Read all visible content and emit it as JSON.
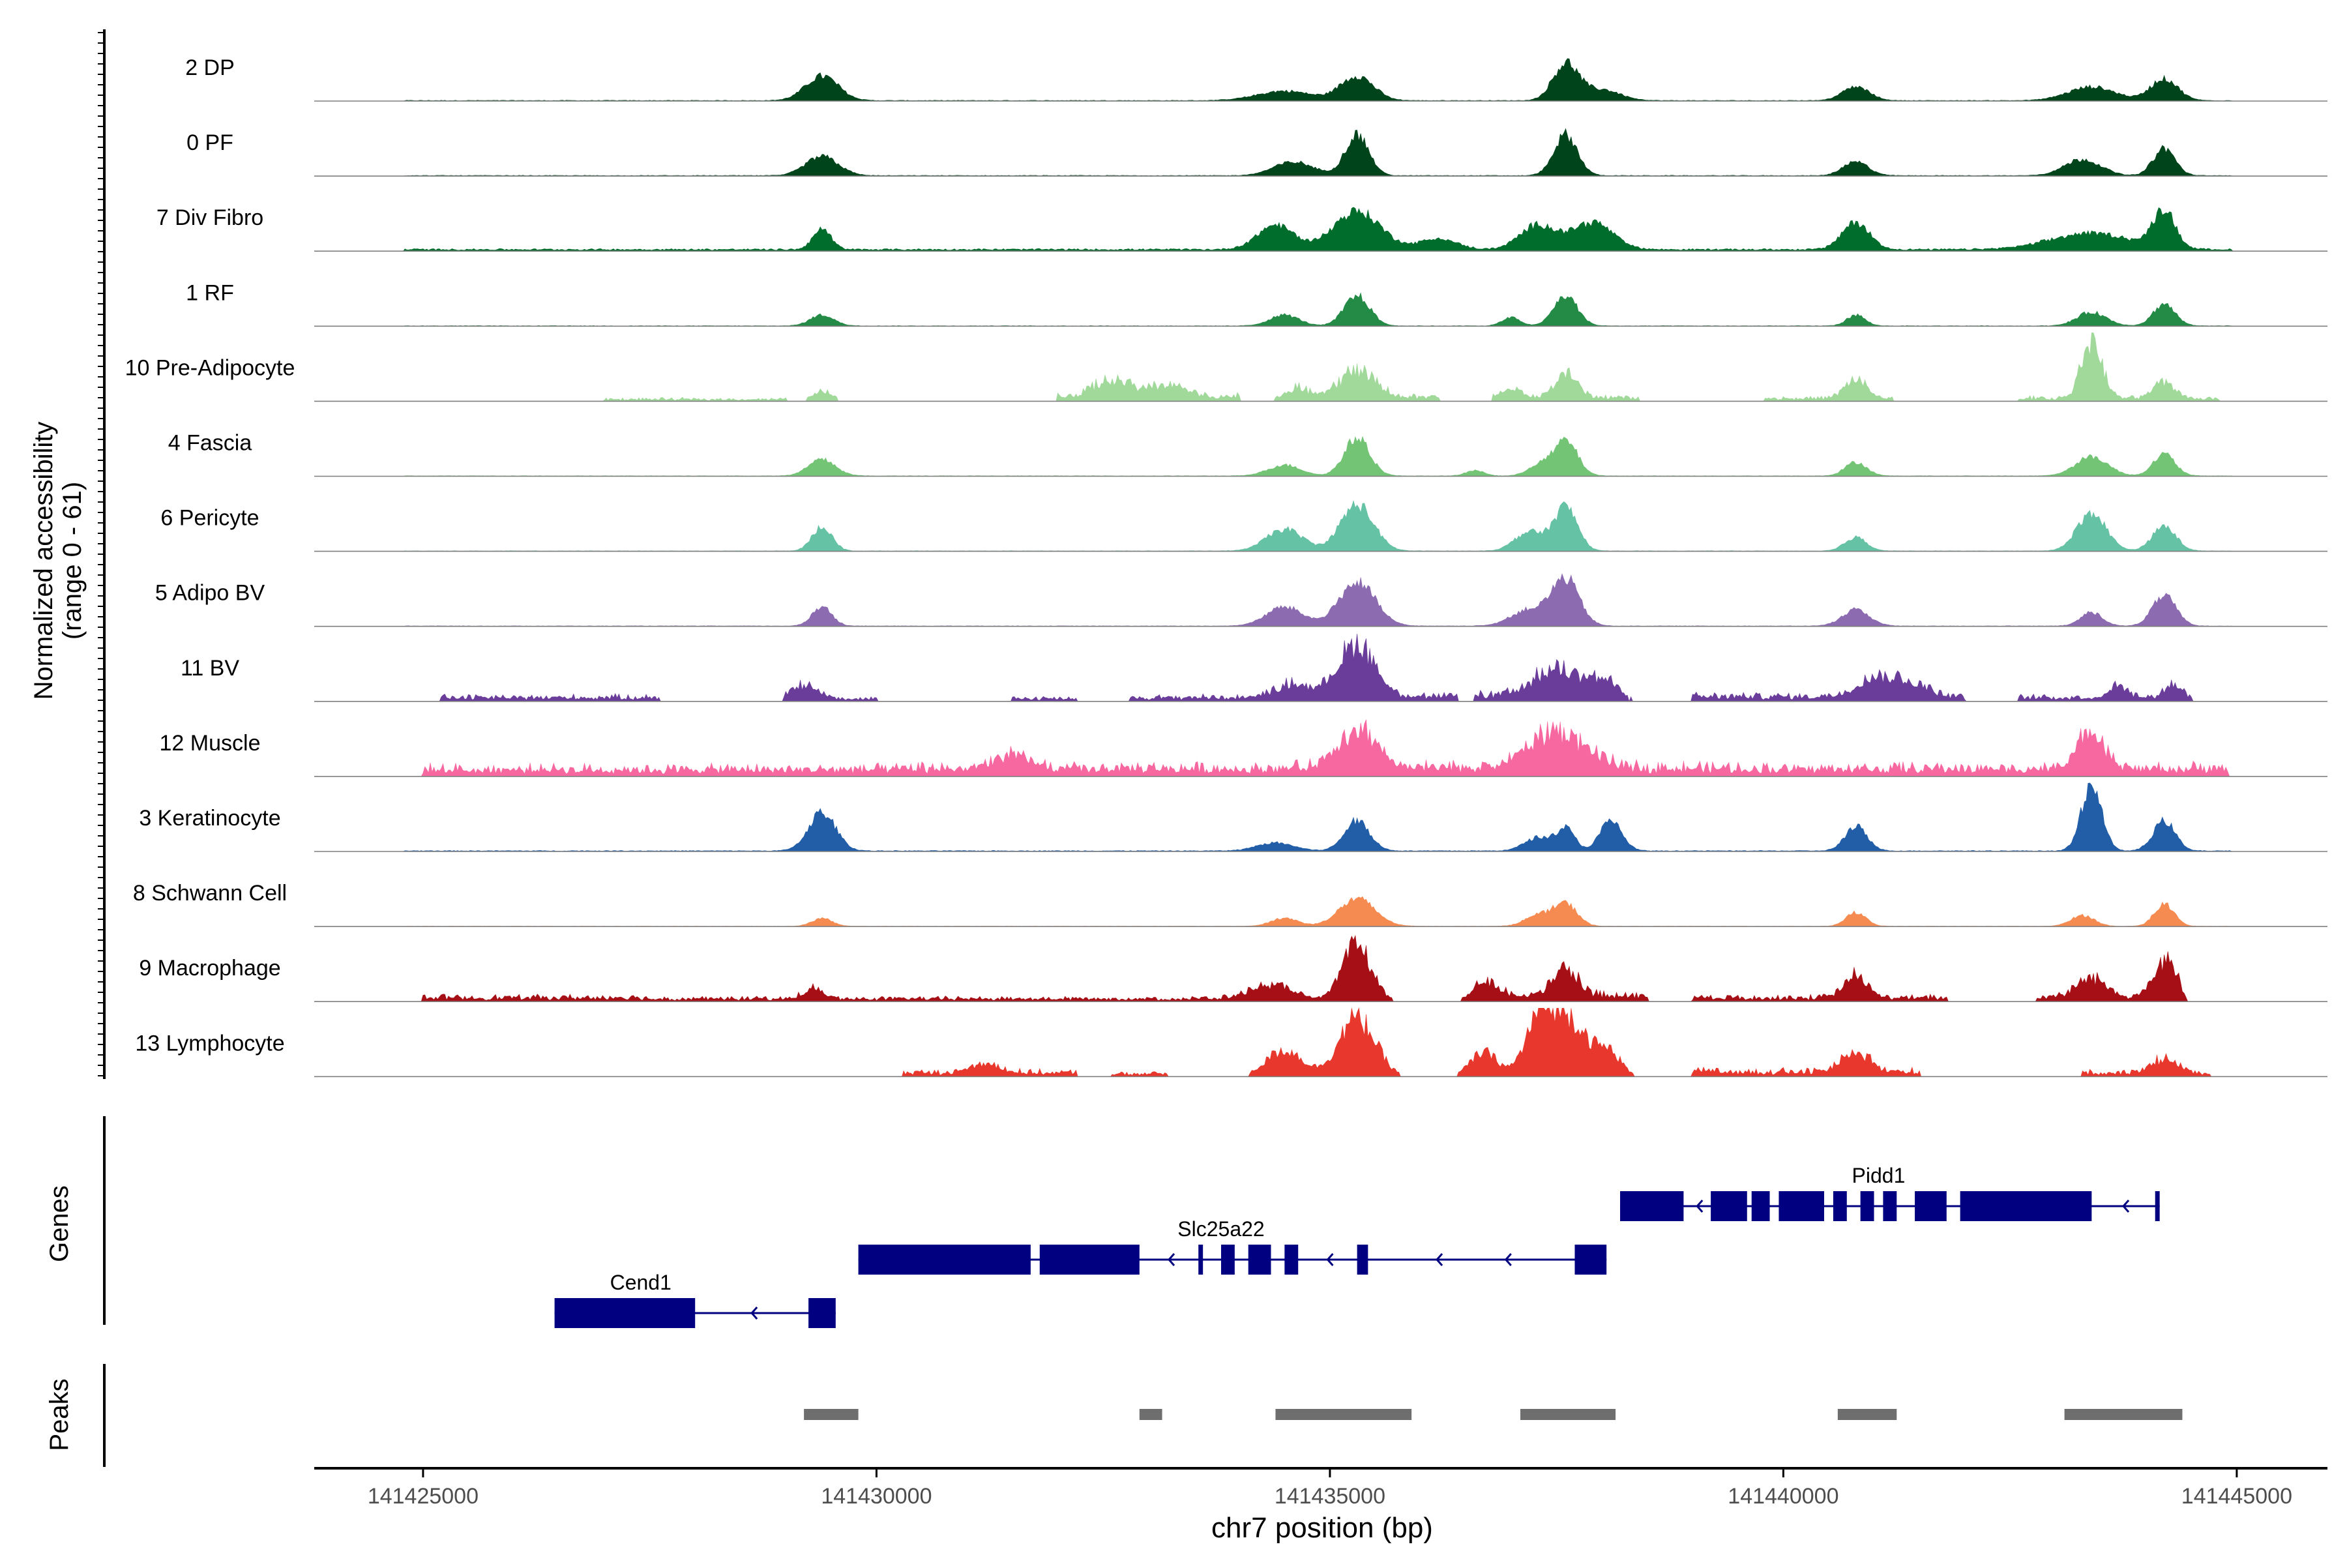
{
  "chart_data": {
    "type": "area",
    "title": "",
    "ylabel_line1": "Normalized accessibility",
    "ylabel_line2": "(range 0 - 61)",
    "xlabel": "chr7 position (bp)",
    "chromosome": "chr7",
    "y_range": [
      0,
      61
    ],
    "x_range": [
      141423800,
      141446000
    ],
    "x_ticks": [
      141425000,
      141430000,
      141435000,
      141440000,
      141445000
    ],
    "x_tick_labels": [
      "141425000",
      "141430000",
      "141435000",
      "141440000",
      "141445000"
    ],
    "peak_centers": [
      141429400,
      141435300,
      141437600,
      141440800,
      141443400,
      141444200
    ],
    "series": [
      {
        "name": "2 DP",
        "color": "#00441b",
        "style": "smooth",
        "baseline": 0.4,
        "peaks": [
          [
            141429400,
            18,
            180
          ],
          [
            141434500,
            7,
            300
          ],
          [
            141435300,
            18,
            180
          ],
          [
            141437600,
            27,
            140
          ],
          [
            141438000,
            8,
            200
          ],
          [
            141440800,
            10,
            150
          ],
          [
            141443400,
            10,
            260
          ],
          [
            141444200,
            16,
            150
          ]
        ]
      },
      {
        "name": "0 PF",
        "color": "#00441b",
        "style": "smooth",
        "baseline": 0.4,
        "peaks": [
          [
            141429400,
            14,
            180
          ],
          [
            141434600,
            10,
            220
          ],
          [
            141435300,
            30,
            130
          ],
          [
            141437600,
            30,
            130
          ],
          [
            141440800,
            10,
            140
          ],
          [
            141443300,
            12,
            200
          ],
          [
            141444200,
            20,
            120
          ]
        ]
      },
      {
        "name": "7 Div Fibro",
        "color": "#006d2c",
        "style": "smooth",
        "baseline": 1.2,
        "peaks": [
          [
            141429400,
            15,
            100
          ],
          [
            141434400,
            18,
            200
          ],
          [
            141435300,
            28,
            260
          ],
          [
            141436200,
            8,
            200
          ],
          [
            141437300,
            18,
            200
          ],
          [
            141437900,
            20,
            220
          ],
          [
            141440800,
            20,
            150
          ],
          [
            141443400,
            12,
            450
          ],
          [
            141444200,
            28,
            120
          ]
        ]
      },
      {
        "name": "1 RF",
        "color": "#238b45",
        "style": "smooth",
        "baseline": 0.3,
        "peaks": [
          [
            141429400,
            8,
            130
          ],
          [
            141434500,
            8,
            160
          ],
          [
            141435300,
            22,
            140
          ],
          [
            141437000,
            6,
            100
          ],
          [
            141437600,
            22,
            130
          ],
          [
            141440800,
            8,
            100
          ],
          [
            141443400,
            10,
            160
          ],
          [
            141444200,
            16,
            120
          ]
        ]
      },
      {
        "name": "10 Pre-Adipocyte",
        "color": "#a1d99b",
        "style": "block",
        "baseline": 0.2,
        "ranges": [
          [
            141427000,
            141429000,
            2
          ],
          [
            141432000,
            141434000,
            5
          ],
          [
            141434600,
            141436200,
            4
          ],
          [
            141436800,
            141438400,
            4
          ],
          [
            141439800,
            141441200,
            3
          ],
          [
            141442600,
            141444800,
            3
          ]
        ],
        "peaks": [
          [
            141429400,
            8,
            110
          ],
          [
            141432600,
            12,
            200
          ],
          [
            141433200,
            9,
            200
          ],
          [
            141434600,
            7,
            150
          ],
          [
            141435300,
            20,
            200
          ],
          [
            141437000,
            7,
            100
          ],
          [
            141437600,
            18,
            120
          ],
          [
            141440800,
            14,
            120
          ],
          [
            141443400,
            45,
            110
          ],
          [
            141444200,
            12,
            120
          ]
        ]
      },
      {
        "name": "4 Fascia",
        "color": "#74c476",
        "style": "smooth",
        "baseline": 0.3,
        "peaks": [
          [
            141429400,
            12,
            150
          ],
          [
            141434500,
            8,
            180
          ],
          [
            141435300,
            28,
            140
          ],
          [
            141436600,
            4,
            100
          ],
          [
            141437300,
            8,
            120
          ],
          [
            141437600,
            26,
            130
          ],
          [
            141440800,
            10,
            120
          ],
          [
            141443400,
            14,
            180
          ],
          [
            141444200,
            16,
            120
          ]
        ]
      },
      {
        "name": "6 Pericyte",
        "color": "#66c2a4",
        "style": "smooth",
        "baseline": 0.3,
        "peaks": [
          [
            141429400,
            18,
            110
          ],
          [
            141434500,
            16,
            200
          ],
          [
            141435300,
            34,
            180
          ],
          [
            141437200,
            14,
            160
          ],
          [
            141437600,
            32,
            130
          ],
          [
            141440800,
            10,
            120
          ],
          [
            141443400,
            28,
            160
          ],
          [
            141444200,
            18,
            130
          ]
        ]
      },
      {
        "name": "5 Adipo BV",
        "color": "#8c6bb1",
        "style": "smooth",
        "baseline": 0.3,
        "peaks": [
          [
            141429400,
            14,
            110
          ],
          [
            141434500,
            14,
            200
          ],
          [
            141435300,
            32,
            200
          ],
          [
            141437200,
            12,
            200
          ],
          [
            141437600,
            34,
            150
          ],
          [
            141440800,
            12,
            150
          ],
          [
            141443400,
            10,
            120
          ],
          [
            141444200,
            22,
            130
          ]
        ]
      },
      {
        "name": "11 BV",
        "color": "#6a3d9a",
        "style": "block",
        "baseline": 0.0,
        "ranges": [
          [
            141425200,
            141427600,
            4
          ],
          [
            141429000,
            141430000,
            3
          ],
          [
            141431500,
            141432200,
            3
          ],
          [
            141432800,
            141434400,
            4
          ],
          [
            141434400,
            141436400,
            5
          ],
          [
            141436600,
            141438200,
            6
          ],
          [
            141439000,
            141442000,
            5
          ],
          [
            141442600,
            141444500,
            4
          ]
        ],
        "peaks": [
          [
            141429200,
            10,
            150
          ],
          [
            141434600,
            10,
            200
          ],
          [
            141435300,
            40,
            200
          ],
          [
            141437500,
            20,
            250
          ],
          [
            141438000,
            10,
            200
          ],
          [
            141441000,
            14,
            200
          ],
          [
            141441400,
            10,
            200
          ],
          [
            141443700,
            10,
            100
          ],
          [
            141444300,
            10,
            100
          ]
        ]
      },
      {
        "name": "12 Muscle",
        "color": "#f768a1",
        "style": "block",
        "baseline": 0.0,
        "ranges": [
          [
            141425000,
            141430300,
            7
          ],
          [
            141430300,
            141434400,
            8
          ],
          [
            141434400,
            141436400,
            9
          ],
          [
            141436400,
            141439100,
            9
          ],
          [
            141439100,
            141444900,
            8
          ]
        ],
        "peaks": [
          [
            141431500,
            10,
            200
          ],
          [
            141435300,
            30,
            200
          ],
          [
            141437500,
            28,
            300
          ],
          [
            141443400,
            28,
            150
          ]
        ]
      },
      {
        "name": "3 Keratinocyte",
        "color": "#225ea8",
        "style": "smooth",
        "baseline": 0.5,
        "peaks": [
          [
            141429400,
            28,
            150
          ],
          [
            141434400,
            6,
            200
          ],
          [
            141435300,
            22,
            140
          ],
          [
            141437300,
            10,
            150
          ],
          [
            141437600,
            16,
            100
          ],
          [
            141438100,
            22,
            120
          ],
          [
            141440800,
            18,
            120
          ],
          [
            141443400,
            50,
            110
          ],
          [
            141444200,
            22,
            120
          ]
        ]
      },
      {
        "name": "8 Schwann Cell",
        "color": "#f68b52",
        "style": "smooth",
        "baseline": 0.2,
        "peaks": [
          [
            141429400,
            6,
            110
          ],
          [
            141434500,
            6,
            150
          ],
          [
            141435300,
            20,
            200
          ],
          [
            141437300,
            8,
            150
          ],
          [
            141437600,
            16,
            130
          ],
          [
            141440800,
            10,
            110
          ],
          [
            141443300,
            8,
            130
          ],
          [
            141444200,
            16,
            110
          ]
        ]
      },
      {
        "name": "9 Macrophage",
        "color": "#a50f15",
        "style": "block",
        "baseline": 0.0,
        "ranges": [
          [
            141425000,
            141427400,
            4
          ],
          [
            141427400,
            141430200,
            3
          ],
          [
            141430200,
            141433200,
            3
          ],
          [
            141433200,
            141434300,
            3
          ],
          [
            141436600,
            141438500,
            6
          ],
          [
            141439000,
            141441800,
            4
          ],
          [
            141442800,
            141444400,
            5
          ]
        ],
        "peaks": [
          [
            141429300,
            8,
            100
          ],
          [
            141434400,
            12,
            250
          ],
          [
            141435300,
            42,
            160
          ],
          [
            141436700,
            10,
            150
          ],
          [
            141437600,
            22,
            140
          ],
          [
            141440800,
            18,
            120
          ],
          [
            141443400,
            14,
            160
          ],
          [
            141444200,
            28,
            120
          ]
        ]
      },
      {
        "name": "13 Lymphocyte",
        "color": "#e8372c",
        "style": "block",
        "baseline": 0.0,
        "ranges": [
          [
            141430300,
            141432200,
            4
          ],
          [
            141432600,
            141433200,
            3
          ],
          [
            141439000,
            141441500,
            5
          ],
          [
            141443300,
            141444700,
            4
          ]
        ],
        "peaks": [
          [
            141431200,
            8,
            150
          ],
          [
            141434500,
            20,
            200
          ],
          [
            141435300,
            44,
            200
          ],
          [
            141436700,
            18,
            150
          ],
          [
            141437300,
            28,
            150
          ],
          [
            141437600,
            46,
            250
          ],
          [
            141438100,
            14,
            120
          ],
          [
            141440800,
            16,
            150
          ],
          [
            141444200,
            10,
            150
          ]
        ]
      }
    ],
    "genes_label": "Genes",
    "peaks_label": "Peaks",
    "genes": [
      {
        "name": "Cend1",
        "strand": "-",
        "start": 141426450,
        "end": 141429550,
        "row": 3,
        "exons": [
          [
            141426450,
            141428000,
            "cds"
          ],
          [
            141429250,
            141429550,
            "cds"
          ]
        ]
      },
      {
        "name": "Slc25a22",
        "strand": "-",
        "start": 141429800,
        "end": 141438050,
        "row": 2,
        "exons": [
          [
            141429800,
            141431700,
            "cds"
          ],
          [
            141431800,
            141432900,
            "cds"
          ],
          [
            141433550,
            141433600,
            "utr"
          ],
          [
            141433800,
            141433950,
            "cds"
          ],
          [
            141434100,
            141434350,
            "cds"
          ],
          [
            141434500,
            141434650,
            "cds"
          ],
          [
            141435300,
            141435420,
            "cds"
          ],
          [
            141437700,
            141438050,
            "cds"
          ]
        ]
      },
      {
        "name": "Pidd1",
        "strand": "-",
        "start": 141438200,
        "end": 141444150,
        "row": 1,
        "exons": [
          [
            141438200,
            141438900,
            "cds"
          ],
          [
            141439200,
            141439600,
            "cds"
          ],
          [
            141439650,
            141439850,
            "cds"
          ],
          [
            141439950,
            141440450,
            "cds"
          ],
          [
            141440550,
            141440700,
            "cds"
          ],
          [
            141440850,
            141441000,
            "cds"
          ],
          [
            141441100,
            141441250,
            "cds"
          ],
          [
            141441450,
            141441800,
            "cds"
          ],
          [
            141441950,
            141443400,
            "cds"
          ],
          [
            141444100,
            141444150,
            "utr"
          ]
        ]
      }
    ],
    "peak_regions": [
      [
        141429200,
        141429800
      ],
      [
        141432900,
        141433150
      ],
      [
        141434400,
        141435900
      ],
      [
        141437100,
        141438150
      ],
      [
        141440600,
        141441250
      ],
      [
        141443100,
        141444400
      ]
    ]
  }
}
